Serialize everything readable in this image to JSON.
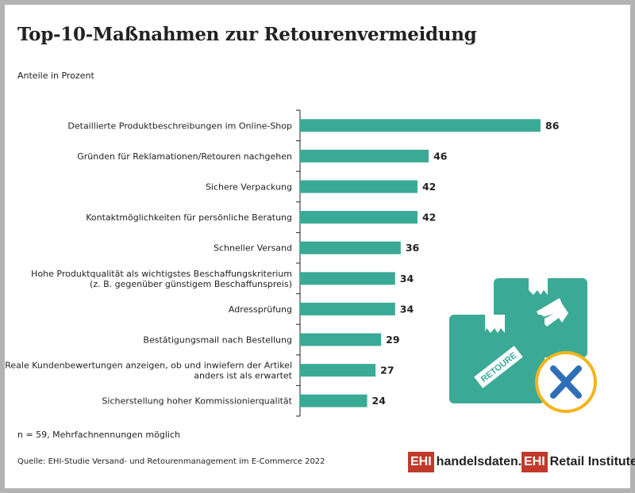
{
  "title": "Top-10-Maßnahmen zur Retourenvermeidung",
  "subtitle": "Anteile in Prozent",
  "note": "n = 59, Mehrfachnennungen möglich",
  "source": "Quelle: EHI-Studie Versand- und Retourenmanagement im E-Commerce 2022",
  "colors": {
    "bar": "#3aaa96",
    "badge_ring": "#f2b51b",
    "badge_x": "#2f6fb6",
    "logo_red": "#c0392b"
  },
  "logos": {
    "left_box": "EHI",
    "left_text": "handelsdaten.de",
    "right_box": "EHI",
    "right_text": "Retail Institute",
    "right_reg": "®"
  },
  "illustration": {
    "label": "RETOURE",
    "icons": [
      "box-icon",
      "box-icon",
      "arrow-icon",
      "close-icon"
    ]
  },
  "chart_data": {
    "type": "bar",
    "orientation": "horizontal",
    "categories": [
      [
        "Detaillierte Produktbeschreibungen im Online-Shop"
      ],
      [
        "Gründen für Reklamationen/Retouren nachgehen"
      ],
      [
        "Sichere Verpackung"
      ],
      [
        "Kontaktmöglichkeiten für persönliche Beratung"
      ],
      [
        "Schneller Versand"
      ],
      [
        "Hohe Produktqualität als wichtigstes Beschaffungskriterium",
        "(z. B. gegenüber günstigem Beschaffunspreis)"
      ],
      [
        "Adressprüfung"
      ],
      [
        "Bestätigungsmail nach Bestellung"
      ],
      [
        "Reale Kundenbewertungen anzeigen, ob und inwiefern der Artikel",
        "anders ist als erwartet"
      ],
      [
        "Sicherstellung hoher Kommissionierqualität"
      ]
    ],
    "values": [
      86,
      46,
      42,
      42,
      36,
      34,
      34,
      29,
      27,
      24
    ],
    "unit": "Prozent",
    "xlim": [
      0,
      100
    ],
    "grid": false,
    "legend": "none"
  }
}
